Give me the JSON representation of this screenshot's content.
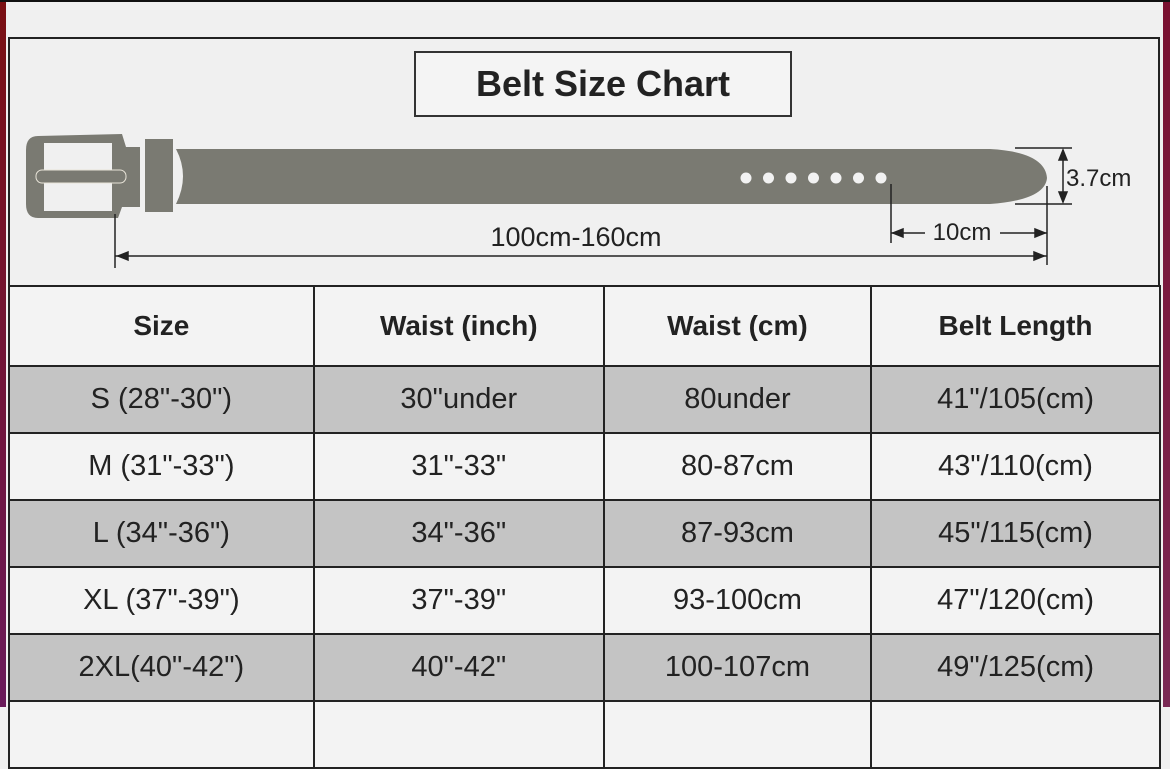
{
  "title": "Belt Size Chart",
  "diagram": {
    "length_label": "100cm-160cm",
    "tip_label": "10cm",
    "width_label": "3.7cm",
    "belt_color": "#7a7a72",
    "hole_count": 7
  },
  "table": {
    "headers": [
      "Size",
      "Waist (inch)",
      "Waist (cm)",
      "Belt Length"
    ],
    "rows": [
      [
        "S (28\"-30\")",
        "30\"under",
        "80under",
        "41\"/105(cm)"
      ],
      [
        "M (31\"-33\")",
        "31\"-33\"",
        "80-87cm",
        "43\"/110(cm)"
      ],
      [
        "L  (34\"-36\")",
        "34\"-36\"",
        "87-93cm",
        "45\"/115(cm)"
      ],
      [
        "XL (37\"-39\")",
        "37\"-39\"",
        "93-100cm",
        "47\"/120(cm)"
      ],
      [
        "2XL(40\"-42\")",
        "40\"-42\"",
        "100-107cm",
        "49\"/125(cm)"
      ]
    ]
  }
}
